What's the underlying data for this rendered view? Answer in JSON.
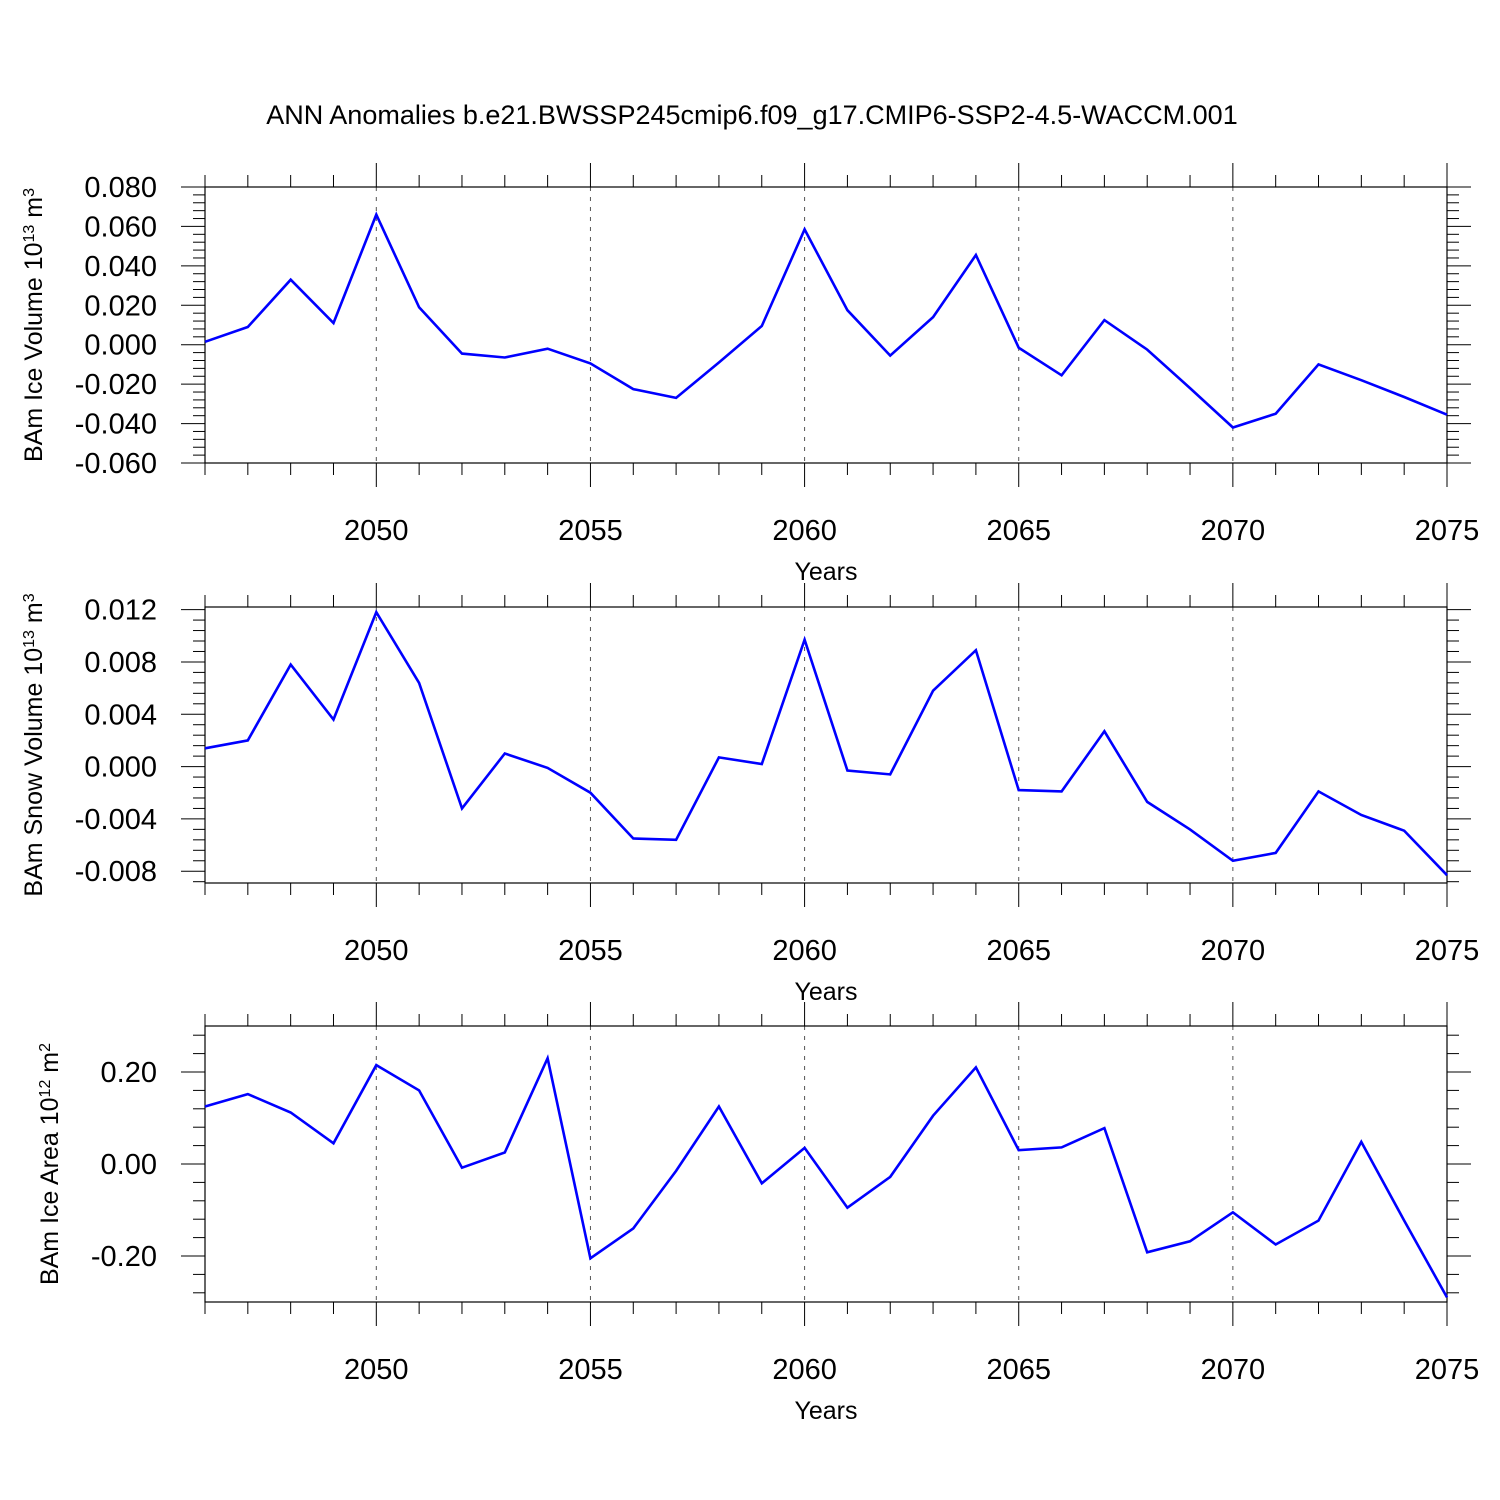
{
  "title": "ANN Anomalies b.e21.BWSSP245cmip6.f09_g17.CMIP6-SSP2-4.5-WACCM.001",
  "colors": {
    "line": "#0000ff",
    "axis": "#000000",
    "grid": "#555555"
  },
  "chart_data": [
    {
      "type": "line",
      "ylabel": {
        "main": "BAm Ice Volume 10",
        "sup1": "13",
        "mid": " m",
        "sup2": "3"
      },
      "xlabel": "Years",
      "xlim": [
        2046,
        2075
      ],
      "ylim": [
        -0.06,
        0.08
      ],
      "yticks": [
        0.08,
        0.06,
        0.04,
        0.02,
        0.0,
        -0.02,
        -0.04,
        -0.06
      ],
      "ytick_labels": [
        "0.080",
        "0.060",
        "0.040",
        "0.020",
        "0.000",
        "-0.020",
        "-0.040",
        "-0.060"
      ],
      "xticks": [
        2050,
        2055,
        2060,
        2065,
        2070,
        2075
      ],
      "xtick_labels": [
        "2050",
        "2055",
        "2060",
        "2065",
        "2070",
        "2075"
      ],
      "grid": "vertical dashed at major x ticks",
      "x": [
        2046,
        2047,
        2048,
        2049,
        2050,
        2051,
        2052,
        2053,
        2054,
        2055,
        2056,
        2057,
        2058,
        2059,
        2060,
        2061,
        2062,
        2063,
        2064,
        2065,
        2066,
        2067,
        2068,
        2069,
        2070,
        2071,
        2072,
        2073,
        2074,
        2075
      ],
      "y": [
        0.0015,
        0.009,
        0.033,
        0.011,
        0.066,
        0.019,
        -0.0045,
        -0.0065,
        -0.002,
        -0.0095,
        -0.0225,
        -0.027,
        -0.009,
        0.0095,
        0.0585,
        0.0175,
        -0.0055,
        0.014,
        0.0455,
        -0.0015,
        -0.0155,
        0.0125,
        -0.0025,
        -0.022,
        -0.042,
        -0.035,
        -0.01,
        -0.018,
        -0.0265,
        -0.0355
      ]
    },
    {
      "type": "line",
      "ylabel": {
        "main": "BAm Snow Volume 10",
        "sup1": "13",
        "mid": " m",
        "sup2": "3"
      },
      "xlabel": "Years",
      "xlim": [
        2046,
        2075
      ],
      "ylim": [
        -0.0089,
        0.0122
      ],
      "yticks": [
        0.012,
        0.008,
        0.004,
        0.0,
        -0.004,
        -0.008
      ],
      "ytick_labels": [
        "0.012",
        "0.008",
        "0.004",
        "0.000",
        "-0.004",
        "-0.008"
      ],
      "xticks": [
        2050,
        2055,
        2060,
        2065,
        2070,
        2075
      ],
      "xtick_labels": [
        "2050",
        "2055",
        "2060",
        "2065",
        "2070",
        "2075"
      ],
      "grid": "vertical dashed at major x ticks",
      "x": [
        2046,
        2047,
        2048,
        2049,
        2050,
        2051,
        2052,
        2053,
        2054,
        2055,
        2056,
        2057,
        2058,
        2059,
        2060,
        2061,
        2062,
        2063,
        2064,
        2065,
        2066,
        2067,
        2068,
        2069,
        2070,
        2071,
        2072,
        2073,
        2074,
        2075
      ],
      "y": [
        0.0014,
        0.002,
        0.0078,
        0.0036,
        0.0118,
        0.0064,
        -0.0032,
        0.001,
        -0.0001,
        -0.002,
        -0.0055,
        -0.0056,
        0.0007,
        0.0002,
        0.0097,
        -0.0003,
        -0.0006,
        0.0058,
        0.0089,
        -0.0018,
        -0.0019,
        0.0027,
        -0.0027,
        -0.0048,
        -0.0072,
        -0.0066,
        -0.0019,
        -0.0037,
        -0.0049,
        -0.0083
      ]
    },
    {
      "type": "line",
      "ylabel": {
        "main": "BAm Ice Area 10",
        "sup1": "12",
        "mid": " m",
        "sup2": "2"
      },
      "xlabel": "Years",
      "xlim": [
        2046,
        2075
      ],
      "ylim": [
        -0.3,
        0.3
      ],
      "yticks": [
        0.2,
        0.0,
        -0.2
      ],
      "ytick_labels": [
        "0.20",
        "0.00",
        "-0.20"
      ],
      "xticks": [
        2050,
        2055,
        2060,
        2065,
        2070,
        2075
      ],
      "xtick_labels": [
        "2050",
        "2055",
        "2060",
        "2065",
        "2070",
        "2075"
      ],
      "grid": "vertical dashed at major x ticks",
      "x": [
        2046,
        2047,
        2048,
        2049,
        2050,
        2051,
        2052,
        2053,
        2054,
        2055,
        2056,
        2057,
        2058,
        2059,
        2060,
        2061,
        2062,
        2063,
        2064,
        2065,
        2066,
        2067,
        2068,
        2069,
        2070,
        2071,
        2072,
        2073,
        2074,
        2075
      ],
      "y": [
        0.125,
        0.152,
        0.112,
        0.045,
        0.215,
        0.16,
        -0.008,
        0.025,
        0.23,
        -0.205,
        -0.14,
        -0.015,
        0.125,
        -0.042,
        0.035,
        -0.095,
        -0.028,
        0.105,
        0.21,
        0.03,
        0.036,
        0.078,
        -0.192,
        -0.168,
        -0.105,
        -0.175,
        -0.123,
        0.048,
        -0.123,
        -0.29
      ]
    }
  ]
}
